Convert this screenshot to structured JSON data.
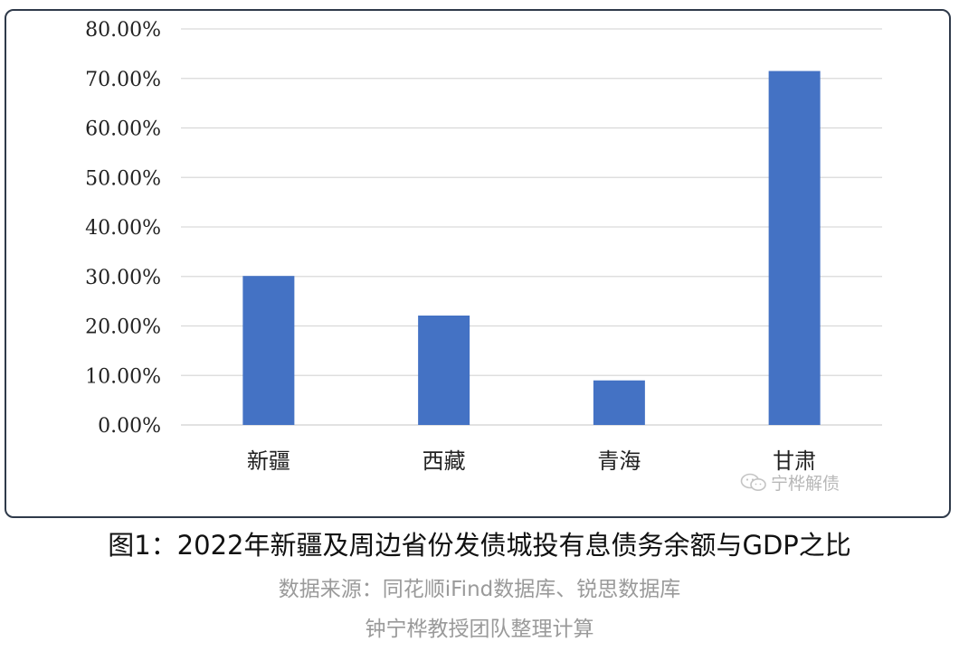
{
  "chart_data": {
    "type": "bar",
    "categories": [
      "新疆",
      "西藏",
      "青海",
      "甘肃"
    ],
    "values": [
      30.1,
      22.1,
      9.0,
      71.5
    ],
    "y_ticks": [
      "0.00%",
      "10.00%",
      "20.00%",
      "30.00%",
      "40.00%",
      "50.00%",
      "60.00%",
      "70.00%",
      "80.00%"
    ],
    "ylim": [
      0,
      80
    ],
    "unit": "%",
    "grid": "horizontal",
    "bar_color": "#4472c4",
    "grid_color": "#d9d9d9"
  },
  "watermark": {
    "text": "宁桦解债",
    "icon": "wechat-icon"
  },
  "caption": "图1：2022年新疆及周边省份发债城投有息债务余额与GDP之比",
  "source": "数据来源：同花顺iFind数据库、锐思数据库",
  "team": "钟宁桦教授团队整理计算"
}
